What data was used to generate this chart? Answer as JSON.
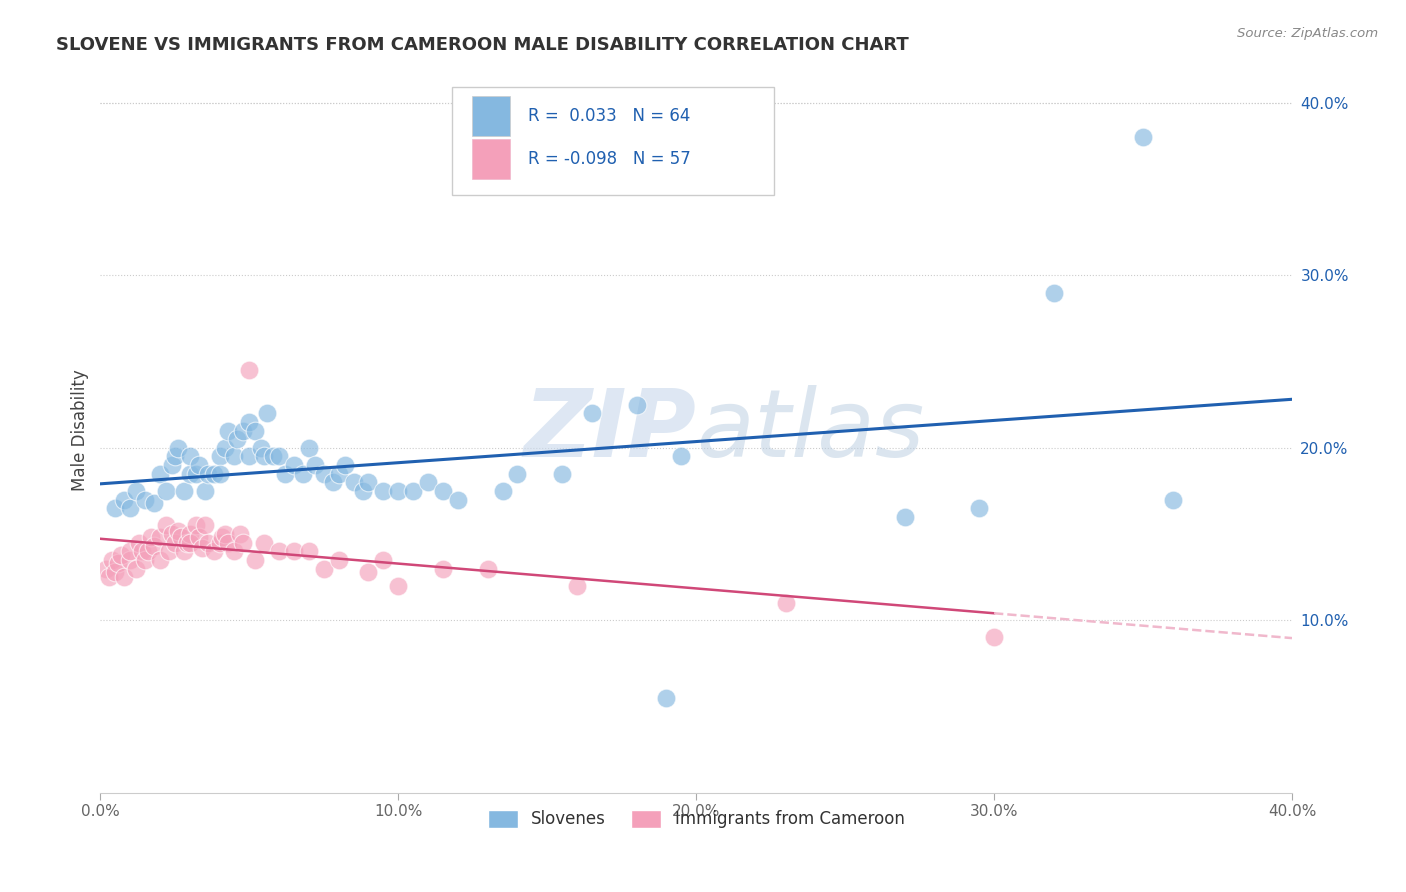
{
  "title": "SLOVENE VS IMMIGRANTS FROM CAMEROON MALE DISABILITY CORRELATION CHART",
  "source_text": "Source: ZipAtlas.com",
  "ylabel": "Male Disability",
  "xlim": [
    0.0,
    0.4
  ],
  "ylim": [
    0.0,
    0.42
  ],
  "x_ticks": [
    0.0,
    0.1,
    0.2,
    0.3,
    0.4
  ],
  "x_tick_labels": [
    "0.0%",
    "10.0%",
    "20.0%",
    "30.0%",
    "40.0%"
  ],
  "y_ticks": [
    0.1,
    0.2,
    0.3,
    0.4
  ],
  "y_tick_labels": [
    "10.0%",
    "20.0%",
    "30.0%",
    "40.0%"
  ],
  "legend_blue_r": "0.033",
  "legend_blue_n": "64",
  "legend_pink_r": "-0.098",
  "legend_pink_n": "57",
  "blue_color": "#85b8e0",
  "pink_color": "#f4a0ba",
  "blue_line_color": "#2060b0",
  "pink_line_color": "#d04878",
  "pink_dash_color": "#f0b8cc",
  "watermark_zip": "ZIP",
  "watermark_atlas": "atlas",
  "slovene_label": "Slovenes",
  "cameroon_label": "Immigrants from Cameroon",
  "blue_scatter_x": [
    0.005,
    0.008,
    0.01,
    0.012,
    0.015,
    0.018,
    0.02,
    0.022,
    0.024,
    0.025,
    0.026,
    0.028,
    0.03,
    0.03,
    0.032,
    0.033,
    0.035,
    0.036,
    0.038,
    0.04,
    0.04,
    0.042,
    0.043,
    0.045,
    0.046,
    0.048,
    0.05,
    0.05,
    0.052,
    0.054,
    0.055,
    0.056,
    0.058,
    0.06,
    0.062,
    0.065,
    0.068,
    0.07,
    0.072,
    0.075,
    0.078,
    0.08,
    0.082,
    0.085,
    0.088,
    0.09,
    0.095,
    0.1,
    0.105,
    0.11,
    0.115,
    0.12,
    0.135,
    0.14,
    0.155,
    0.165,
    0.18,
    0.195,
    0.27,
    0.295,
    0.32,
    0.35,
    0.36,
    0.19
  ],
  "blue_scatter_y": [
    0.165,
    0.17,
    0.165,
    0.175,
    0.17,
    0.168,
    0.185,
    0.175,
    0.19,
    0.195,
    0.2,
    0.175,
    0.185,
    0.195,
    0.185,
    0.19,
    0.175,
    0.185,
    0.185,
    0.195,
    0.185,
    0.2,
    0.21,
    0.195,
    0.205,
    0.21,
    0.215,
    0.195,
    0.21,
    0.2,
    0.195,
    0.22,
    0.195,
    0.195,
    0.185,
    0.19,
    0.185,
    0.2,
    0.19,
    0.185,
    0.18,
    0.185,
    0.19,
    0.18,
    0.175,
    0.18,
    0.175,
    0.175,
    0.175,
    0.18,
    0.175,
    0.17,
    0.175,
    0.185,
    0.185,
    0.22,
    0.225,
    0.195,
    0.16,
    0.165,
    0.29,
    0.38,
    0.17,
    0.055
  ],
  "pink_scatter_x": [
    0.002,
    0.003,
    0.004,
    0.005,
    0.006,
    0.007,
    0.008,
    0.01,
    0.01,
    0.012,
    0.013,
    0.014,
    0.015,
    0.016,
    0.017,
    0.018,
    0.02,
    0.02,
    0.022,
    0.023,
    0.024,
    0.025,
    0.026,
    0.027,
    0.028,
    0.029,
    0.03,
    0.03,
    0.032,
    0.033,
    0.034,
    0.035,
    0.036,
    0.038,
    0.04,
    0.041,
    0.042,
    0.043,
    0.045,
    0.047,
    0.048,
    0.05,
    0.052,
    0.055,
    0.06,
    0.065,
    0.07,
    0.075,
    0.08,
    0.09,
    0.095,
    0.1,
    0.115,
    0.13,
    0.16,
    0.23,
    0.3
  ],
  "pink_scatter_y": [
    0.13,
    0.125,
    0.135,
    0.128,
    0.133,
    0.138,
    0.125,
    0.135,
    0.14,
    0.13,
    0.145,
    0.14,
    0.135,
    0.14,
    0.148,
    0.143,
    0.135,
    0.148,
    0.155,
    0.14,
    0.15,
    0.145,
    0.152,
    0.148,
    0.14,
    0.145,
    0.15,
    0.145,
    0.155,
    0.148,
    0.142,
    0.155,
    0.145,
    0.14,
    0.145,
    0.148,
    0.15,
    0.145,
    0.14,
    0.15,
    0.145,
    0.245,
    0.135,
    0.145,
    0.14,
    0.14,
    0.14,
    0.13,
    0.135,
    0.128,
    0.135,
    0.12,
    0.13,
    0.13,
    0.12,
    0.11,
    0.09
  ],
  "grid_color": "#cccccc",
  "background_color": "#ffffff"
}
